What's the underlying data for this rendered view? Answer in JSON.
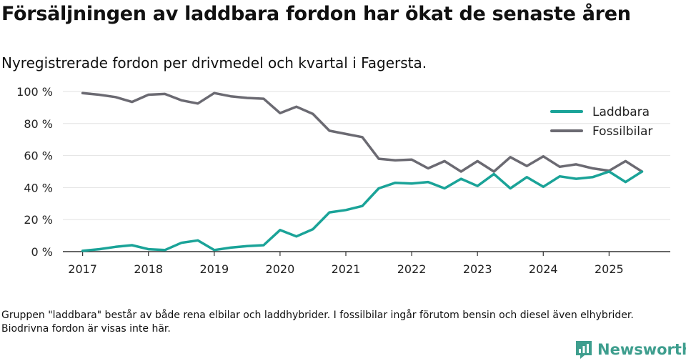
{
  "title": "Försäljningen av laddbara fordon har ökat de senaste åren",
  "subtitle": "Nyregistrerade fordon per drivmedel och kvartal i Fagersta.",
  "note": "Gruppen \"laddbara\" består av både rena elbilar och laddhybrider. I fossilbilar ingår förutom bensin och diesel även elhybrider. Biodrivna fordon är visas inte här.",
  "brand": {
    "name": "Newsworthy",
    "logo_icon": "newsworthy-logo-icon"
  },
  "colors": {
    "laddbara": "#1aa398",
    "fossilbilar": "#6b6a72",
    "grid": "#e2e2e2",
    "axis": "#333333"
  },
  "chart_data": {
    "type": "line",
    "title": "Försäljningen av laddbara fordon har ökat de senaste åren",
    "xlabel": "",
    "ylabel": "",
    "ylim": [
      0,
      100
    ],
    "y_ticks": [
      "0 %",
      "20 %",
      "40 %",
      "60 %",
      "80 %",
      "100 %"
    ],
    "y_tick_values": [
      0,
      20,
      40,
      60,
      80,
      100
    ],
    "x_range": [
      2017,
      2025.5
    ],
    "x_ticks": [
      "2017",
      "2018",
      "2019",
      "2020",
      "2021",
      "2022",
      "2023",
      "2024",
      "2025"
    ],
    "x_tick_values": [
      2017,
      2018,
      2019,
      2020,
      2021,
      2022,
      2023,
      2024,
      2025
    ],
    "x": [
      2017,
      2017.25,
      2017.5,
      2017.75,
      2018,
      2018.25,
      2018.5,
      2018.75,
      2019,
      2019.25,
      2019.5,
      2019.75,
      2020,
      2020.25,
      2020.5,
      2020.75,
      2021,
      2021.25,
      2021.5,
      2021.75,
      2022,
      2022.25,
      2022.5,
      2022.75,
      2023,
      2023.25,
      2023.5,
      2023.75,
      2024,
      2024.25,
      2024.5,
      2024.75,
      2025,
      2025.25,
      2025.5
    ],
    "legend_position": "top-right",
    "grid": true,
    "series": [
      {
        "name": "Laddbara",
        "key": "laddbara",
        "values": [
          0.5,
          1.5,
          3,
          4,
          1.5,
          1,
          5.5,
          7,
          1,
          2.5,
          3.5,
          4,
          13.5,
          9.5,
          14,
          24.5,
          26,
          28.5,
          39.5,
          43,
          42.5,
          43.5,
          39.5,
          45.5,
          41,
          48.5,
          39.5,
          46.5,
          40.5,
          47,
          45.5,
          46.5,
          50,
          43.5,
          50
        ]
      },
      {
        "name": "Fossilbilar",
        "key": "fossilbilar",
        "values": [
          99,
          98,
          96.5,
          93.5,
          98,
          98.5,
          94.5,
          92.5,
          99,
          97,
          96,
          95.5,
          86.5,
          90.5,
          86,
          75.5,
          73.5,
          71.5,
          58,
          57,
          57.5,
          52,
          56.5,
          50,
          56.5,
          50,
          59,
          53.5,
          59.5,
          53,
          54.5,
          52,
          50.5,
          56.5,
          50
        ]
      }
    ]
  }
}
